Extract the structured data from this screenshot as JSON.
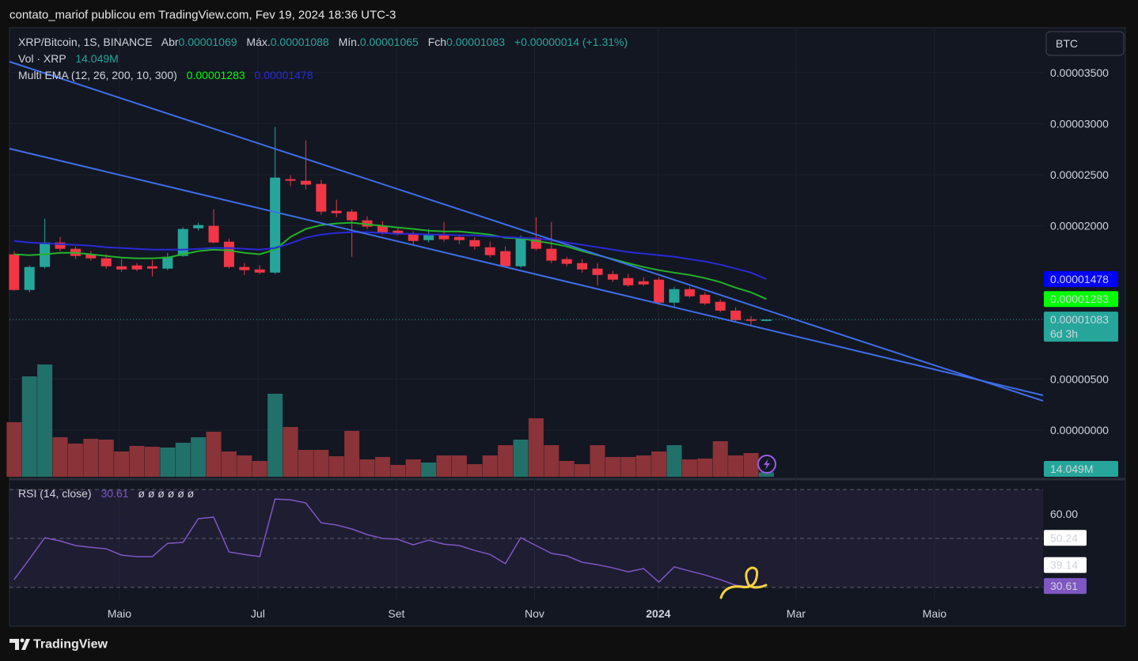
{
  "header": {
    "caption": "contato_mariof publicou em TradingView.com, Fev 19, 2024 18:36 UTC-3"
  },
  "footer": {
    "brand": "TradingView"
  },
  "chart_data": [
    {
      "type": "candlestick",
      "symbol": "XRP/Bitcoin, 1S, BINANCE",
      "ohlc_labels": [
        "Abr",
        "Máx.",
        "Mín.",
        "Fch"
      ],
      "change_label": "+0.00000014 (+1.31%)",
      "currency": "BTC",
      "countdown": "6d 3h",
      "up_color": "#26a69a",
      "down_color": "#f23645",
      "categories": [
        null,
        null,
        null,
        null,
        null,
        null,
        null,
        null,
        null,
        null,
        null,
        null,
        null,
        null,
        null,
        null,
        null,
        null,
        null,
        null,
        null,
        null,
        null,
        null,
        null,
        null,
        null,
        null,
        null,
        null,
        null,
        null,
        null,
        null,
        null,
        null,
        null,
        null,
        null,
        null,
        null,
        null,
        null,
        null,
        null,
        null,
        null,
        null,
        null,
        null
      ],
      "open": [
        1.721e-05,
        1.372e-05,
        1.597e-05,
        1.837e-05,
        1.775e-05,
        1.721e-05,
        1.682e-05,
        1.604e-05,
        1.612e-05,
        1.604e-05,
        1.581e-05,
        1.705e-05,
        1.976e-05,
        2e-05,
        1.845e-05,
        1.597e-05,
        1.573e-05,
        1.542e-05,
        2.457e-05,
        2.441e-05,
        2.41e-05,
        2.147e-05,
        2.139e-05,
        2.054e-05,
        2e-05,
        1.953e-05,
        1.922e-05,
        1.86e-05,
        1.914e-05,
        1.891e-05,
        1.86e-05,
        1.79e-05,
        1.752e-05,
        1.604e-05,
        1.883e-05,
        1.775e-05,
        1.674e-05,
        1.635e-05,
        1.581e-05,
        1.527e-05,
        1.488e-05,
        1.457e-05,
        1.473e-05,
        1.248e-05,
        1.38e-05,
        1.325e-05,
        1.256e-05,
        1.17e-05,
        1.085e-05,
        1.069e-05
      ],
      "high": [
        1.752e-05,
        1.612e-05,
        2.069e-05,
        1.891e-05,
        1.798e-05,
        1.752e-05,
        1.721e-05,
        1.674e-05,
        1.635e-05,
        1.666e-05,
        1.736e-05,
        1.984e-05,
        2.031e-05,
        2.162e-05,
        1.876e-05,
        1.635e-05,
        1.612e-05,
        2.968e-05,
        2.496e-05,
        2.837e-05,
        2.449e-05,
        2.255e-05,
        2.162e-05,
        2.093e-05,
        2.046e-05,
        1.976e-05,
        1.945e-05,
        1.969e-05,
        2.038e-05,
        1.914e-05,
        1.891e-05,
        1.845e-05,
        1.798e-05,
        1.907e-05,
        2.085e-05,
        2.038e-05,
        1.697e-05,
        1.674e-05,
        1.635e-05,
        1.558e-05,
        1.527e-05,
        1.496e-05,
        1.496e-05,
        1.403e-05,
        1.403e-05,
        1.349e-05,
        1.279e-05,
        1.201e-05,
        1.116e-05,
        1.088e-05
      ],
      "low": [
        1.364e-05,
        1.349e-05,
        1.581e-05,
        1.752e-05,
        1.674e-05,
        1.659e-05,
        1.581e-05,
        1.55e-05,
        1.558e-05,
        1.504e-05,
        1.566e-05,
        1.697e-05,
        1.953e-05,
        1.829e-05,
        1.581e-05,
        1.519e-05,
        1.527e-05,
        1.527e-05,
        2.387e-05,
        2.356e-05,
        2.108e-05,
        2.085e-05,
        1.697e-05,
        1.969e-05,
        1.914e-05,
        1.907e-05,
        1.806e-05,
        1.837e-05,
        1.845e-05,
        1.821e-05,
        1.767e-05,
        1.69e-05,
        1.589e-05,
        1.589e-05,
        1.759e-05,
        1.635e-05,
        1.604e-05,
        1.542e-05,
        1.418e-05,
        1.449e-05,
        1.403e-05,
        1.411e-05,
        1.225e-05,
        1.209e-05,
        1.294e-05,
        1.225e-05,
        1.155e-05,
        1.062e-05,
        1.031e-05,
        1.065e-05
      ],
      "close": [
        1.372e-05,
        1.597e-05,
        1.837e-05,
        1.775e-05,
        1.705e-05,
        1.682e-05,
        1.604e-05,
        1.573e-05,
        1.573e-05,
        1.581e-05,
        1.697e-05,
        1.969e-05,
        2.007e-05,
        1.837e-05,
        1.597e-05,
        1.566e-05,
        1.542e-05,
        2.472e-05,
        2.441e-05,
        2.403e-05,
        2.139e-05,
        2.124e-05,
        2.054e-05,
        1.992e-05,
        1.93e-05,
        1.922e-05,
        1.852e-05,
        1.914e-05,
        1.868e-05,
        1.86e-05,
        1.798e-05,
        1.713e-05,
        1.604e-05,
        1.883e-05,
        1.775e-05,
        1.659e-05,
        1.628e-05,
        1.573e-05,
        1.519e-05,
        1.473e-05,
        1.418e-05,
        1.426e-05,
        1.248e-05,
        1.38e-05,
        1.31e-05,
        1.24e-05,
        1.17e-05,
        1.077e-05,
        1.07e-05,
        1.083e-05
      ],
      "ylim": [
        -4.57e-06,
        3.94e-05
      ],
      "yticks": [
        {
          "value": 0,
          "label": "0.00000000"
        },
        {
          "value": 5e-06,
          "label": "0.00000500"
        },
        {
          "value": 2e-05,
          "label": "0.00002000"
        },
        {
          "value": 2.5e-05,
          "label": "0.00002500"
        },
        {
          "value": 3e-05,
          "label": "0.00003000"
        },
        {
          "value": 3.5e-05,
          "label": "0.00003500"
        }
      ],
      "grid": true,
      "volume": {
        "title": "Vol · XRP",
        "ylim": [
          0,
          1420000000
        ],
        "last_label": "14.049M",
        "up_color": "#22706a",
        "down_color": "#8a3338",
        "values": [
          172500000,
          317500000,
          355000000,
          125000000,
          105000000,
          120000000,
          117500000,
          80000000,
          97500000,
          95000000,
          92500000,
          107500000,
          125000000,
          142500000,
          80000000,
          67500000,
          50000000,
          262500000,
          157500000,
          85000000,
          85000000,
          65000000,
          145000000,
          55000000,
          62500000,
          37500000,
          55000000,
          45000000,
          67500000,
          67500000,
          40000000,
          67500000,
          100000000,
          117500000,
          185000000,
          100000000,
          50000000,
          40000000,
          100000000,
          62500000,
          62500000,
          67500000,
          80000000,
          100000000,
          55000000,
          57500000,
          112500000,
          67500000,
          75000000,
          14049000
        ]
      },
      "ema": {
        "title": "Multi EMA (12, 26, 200, 10, 300)",
        "lines": [
          {
            "color": "#22b32a",
            "marker_color": "#00ff00",
            "values": [
              1.721e-05,
              1.713e-05,
              1.721e-05,
              1.736e-05,
              1.736e-05,
              1.721e-05,
              1.705e-05,
              1.69e-05,
              1.682e-05,
              1.682e-05,
              1.69e-05,
              1.721e-05,
              1.752e-05,
              1.767e-05,
              1.759e-05,
              1.736e-05,
              1.721e-05,
              1.767e-05,
              1.891e-05,
              1.969e-05,
              2.007e-05,
              2.023e-05,
              2.031e-05,
              2.015e-05,
              2e-05,
              1.984e-05,
              1.969e-05,
              1.953e-05,
              1.945e-05,
              1.945e-05,
              1.93e-05,
              1.914e-05,
              1.883e-05,
              1.876e-05,
              1.852e-05,
              1.829e-05,
              1.798e-05,
              1.752e-05,
              1.713e-05,
              1.674e-05,
              1.635e-05,
              1.597e-05,
              1.566e-05,
              1.542e-05,
              1.519e-05,
              1.488e-05,
              1.449e-05,
              1.395e-05,
              1.349e-05,
              1.283e-05
            ]
          },
          {
            "color": "#2a2ad8",
            "marker_color": "#0000ff",
            "values": [
              1.852e-05,
              1.837e-05,
              1.829e-05,
              1.821e-05,
              1.814e-05,
              1.806e-05,
              1.79e-05,
              1.783e-05,
              1.775e-05,
              1.767e-05,
              1.767e-05,
              1.767e-05,
              1.775e-05,
              1.783e-05,
              1.783e-05,
              1.775e-05,
              1.767e-05,
              1.783e-05,
              1.829e-05,
              1.883e-05,
              1.914e-05,
              1.93e-05,
              1.938e-05,
              1.938e-05,
              1.93e-05,
              1.922e-05,
              1.922e-05,
              1.914e-05,
              1.914e-05,
              1.907e-05,
              1.907e-05,
              1.899e-05,
              1.891e-05,
              1.883e-05,
              1.876e-05,
              1.86e-05,
              1.837e-05,
              1.814e-05,
              1.79e-05,
              1.767e-05,
              1.744e-05,
              1.728e-05,
              1.713e-05,
              1.697e-05,
              1.674e-05,
              1.651e-05,
              1.62e-05,
              1.581e-05,
              1.542e-05,
              1.478e-05
            ]
          }
        ]
      }
    },
    {
      "type": "line",
      "title": "RSI (14, close)",
      "flags": "ø ø ø ø ø ø",
      "color": "#7e57c2",
      "values": [
        33.2,
        41.6,
        50.3,
        49.0,
        47.1,
        46.4,
        45.8,
        43.2,
        42.6,
        42.6,
        48.0,
        48.4,
        58.1,
        58.7,
        44.5,
        43.5,
        42.6,
        66.1,
        65.8,
        64.5,
        56.4,
        55.5,
        53.9,
        51.6,
        50.0,
        49.7,
        47.4,
        49.3,
        47.7,
        47.1,
        45.1,
        43.5,
        39.7,
        50.3,
        47.1,
        43.9,
        42.9,
        40.3,
        39.3,
        38.0,
        36.4,
        37.7,
        32.2,
        38.4,
        36.7,
        35.1,
        33.2,
        30.9,
        30.3,
        30.61
      ],
      "ylim": [
        24.5,
        72.3
      ],
      "yticks": [
        {
          "value": 60,
          "label": "60.00"
        }
      ],
      "levels": [
        70,
        50,
        30
      ],
      "markers": [
        50.24,
        39.14
      ],
      "xlim": [
        -0.3,
        67.02
      ],
      "xticks": [
        {
          "value": 6.86,
          "label": "Maio"
        },
        {
          "value": 15.88,
          "label": "Jul"
        },
        {
          "value": 24.9,
          "label": "Set"
        },
        {
          "value": 33.9,
          "label": "Nov"
        },
        {
          "value": 41.96,
          "label": "2024"
        },
        {
          "value": 50.93,
          "label": "Mar"
        },
        {
          "value": 59.95,
          "label": "Maio"
        }
      ]
    }
  ]
}
